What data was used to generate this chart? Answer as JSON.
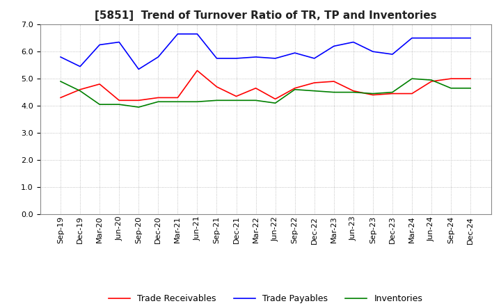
{
  "title": "[5851]  Trend of Turnover Ratio of TR, TP and Inventories",
  "x_labels": [
    "Sep-19",
    "Dec-19",
    "Mar-20",
    "Jun-20",
    "Sep-20",
    "Dec-20",
    "Mar-21",
    "Jun-21",
    "Sep-21",
    "Dec-21",
    "Mar-22",
    "Jun-22",
    "Sep-22",
    "Dec-22",
    "Mar-23",
    "Jun-23",
    "Sep-23",
    "Dec-23",
    "Mar-24",
    "Jun-24",
    "Sep-24",
    "Dec-24"
  ],
  "trade_receivables": [
    4.3,
    4.6,
    4.8,
    4.2,
    4.2,
    4.3,
    4.3,
    5.3,
    4.7,
    4.35,
    4.65,
    4.25,
    4.65,
    4.85,
    4.9,
    4.55,
    4.4,
    4.45,
    4.45,
    4.9,
    5.0,
    5.0
  ],
  "trade_payables": [
    5.8,
    5.45,
    6.25,
    6.35,
    5.35,
    5.8,
    6.65,
    6.65,
    5.75,
    5.75,
    5.8,
    5.75,
    5.95,
    5.75,
    6.2,
    6.35,
    6.0,
    5.9,
    6.5,
    6.5,
    6.5,
    6.5
  ],
  "inventories": [
    4.9,
    4.55,
    4.05,
    4.05,
    3.95,
    4.15,
    4.15,
    4.15,
    4.2,
    4.2,
    4.2,
    4.1,
    4.6,
    4.55,
    4.5,
    4.5,
    4.45,
    4.5,
    5.0,
    4.95,
    4.65,
    4.65
  ],
  "tr_color": "#ff0000",
  "tp_color": "#0000ff",
  "inv_color": "#008000",
  "ylim": [
    0.0,
    7.0
  ],
  "yticks": [
    0.0,
    1.0,
    2.0,
    3.0,
    4.0,
    5.0,
    6.0,
    7.0
  ],
  "background_color": "#ffffff",
  "grid_color": "#b0b0b0",
  "title_fontsize": 11,
  "tick_fontsize": 8,
  "legend_fontsize": 9
}
